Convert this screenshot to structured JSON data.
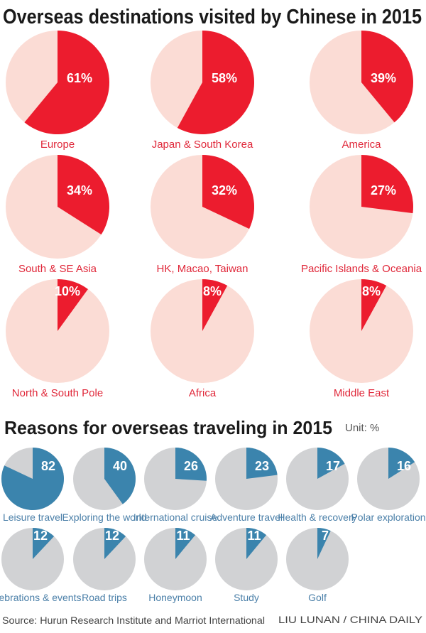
{
  "chart_data": [
    {
      "type": "pie",
      "title": "Overseas destinations visited by Chinese in 2015",
      "unit": "%",
      "colors": {
        "value": "#ec1c2e",
        "rest": "#fbdcd5",
        "label": "#e0283a"
      },
      "categories": [
        "Europe",
        "Japan & South Korea",
        "America",
        "South & SE Asia",
        "HK, Macao, Taiwan",
        "Pacific Islands & Oceania",
        "North & South Pole",
        "Africa",
        "Middle East"
      ],
      "values": [
        61,
        58,
        39,
        34,
        32,
        27,
        10,
        8,
        8
      ],
      "value_labels": [
        "61%",
        "58%",
        "39%",
        "34%",
        "32%",
        "27%",
        "10%",
        "8%",
        "8%"
      ]
    },
    {
      "type": "pie",
      "title": "Reasons for overseas traveling in 2015",
      "unit_label": "Unit: %",
      "colors": {
        "value": "#3b84ad",
        "rest": "#d1d2d4",
        "label": "#4a7fa8"
      },
      "categories": [
        "Leisure travel",
        "Exploring the world",
        "International cruise",
        "Adventure travel",
        "Health & recovery",
        "Polar exploration",
        "Celebrations & events",
        "Road trips",
        "Honeymoon",
        "Study",
        "Golf"
      ],
      "values": [
        82,
        40,
        26,
        23,
        17,
        16,
        12,
        12,
        11,
        11,
        7
      ],
      "value_labels": [
        "82",
        "40",
        "26",
        "23",
        "17",
        "16",
        "12",
        "12",
        "11",
        "11",
        "7"
      ]
    }
  ],
  "footer": {
    "source": "Source: Hurun Research Institute and Marriot International",
    "credit": "LIU LUNAN / CHINA DAILY"
  }
}
